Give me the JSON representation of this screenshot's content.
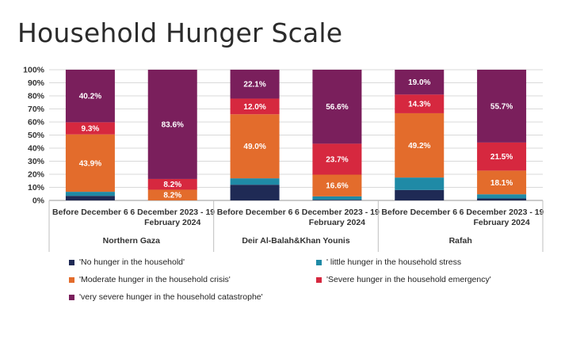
{
  "title": "Household Hunger Scale",
  "chart_data": {
    "type": "bar",
    "stacked": true,
    "title": "Household Hunger Scale",
    "groups": [
      "Northern Gaza",
      "Deir Al-Balah&Khan Younis",
      "Rafah"
    ],
    "categories": [
      "Before December 6",
      "6 December 2023 - 19 February 2024",
      "Before December 6",
      "6 December 2023 - 19 February 2024",
      "Before December 6",
      "6 December 2023 - 19 February 2024"
    ],
    "category_lines": [
      [
        "Before December 6"
      ],
      [
        "6 December 2023 - 19",
        "February 2024"
      ],
      [
        "Before December 6"
      ],
      [
        "6 December 2023 - 19",
        "February 2024"
      ],
      [
        "Before December 6"
      ],
      [
        "6 December 2023 - 19",
        "February 2024"
      ]
    ],
    "ylim": [
      0,
      100
    ],
    "y_ticks": [
      "0%",
      "10%",
      "20%",
      "30%",
      "40%",
      "50%",
      "60%",
      "70%",
      "80%",
      "90%",
      "100%"
    ],
    "grid": true,
    "legend_position": "bottom",
    "series": [
      {
        "name": "'No hunger in the household'",
        "color": "#1f2a55",
        "values": [
          3.5,
          0.0,
          12.0,
          0.5,
          8.0,
          1.5
        ],
        "labels": [
          "",
          "",
          "",
          "",
          "",
          ""
        ]
      },
      {
        "name": "' little hunger in the household stress",
        "color": "#1f8aa6",
        "values": [
          3.1,
          0.0,
          4.9,
          2.6,
          9.5,
          3.2
        ],
        "labels": [
          "",
          "",
          "",
          "",
          "",
          ""
        ]
      },
      {
        "name": "'Moderate hunger in the household crisis'",
        "color": "#e36c2c",
        "values": [
          43.9,
          8.2,
          49.0,
          16.6,
          49.2,
          18.1
        ],
        "labels": [
          "43.9%",
          "8.2%",
          "49.0%",
          "16.6%",
          "49.2%",
          "18.1%"
        ]
      },
      {
        "name": "'Severe hunger in the household emergency'",
        "color": "#d6283f",
        "values": [
          9.3,
          8.2,
          12.0,
          23.7,
          14.3,
          21.5
        ],
        "labels": [
          "9.3%",
          "8.2%",
          "12.0%",
          "23.7%",
          "14.3%",
          "21.5%"
        ]
      },
      {
        "name": "'very severe hunger in the household catastrophe'",
        "color": "#7a1f5c",
        "values": [
          40.2,
          83.6,
          22.1,
          56.6,
          19.0,
          55.7
        ],
        "labels": [
          "40.2%",
          "83.6%",
          "22.1%",
          "56.6%",
          "19.0%",
          "55.7%"
        ]
      }
    ]
  }
}
